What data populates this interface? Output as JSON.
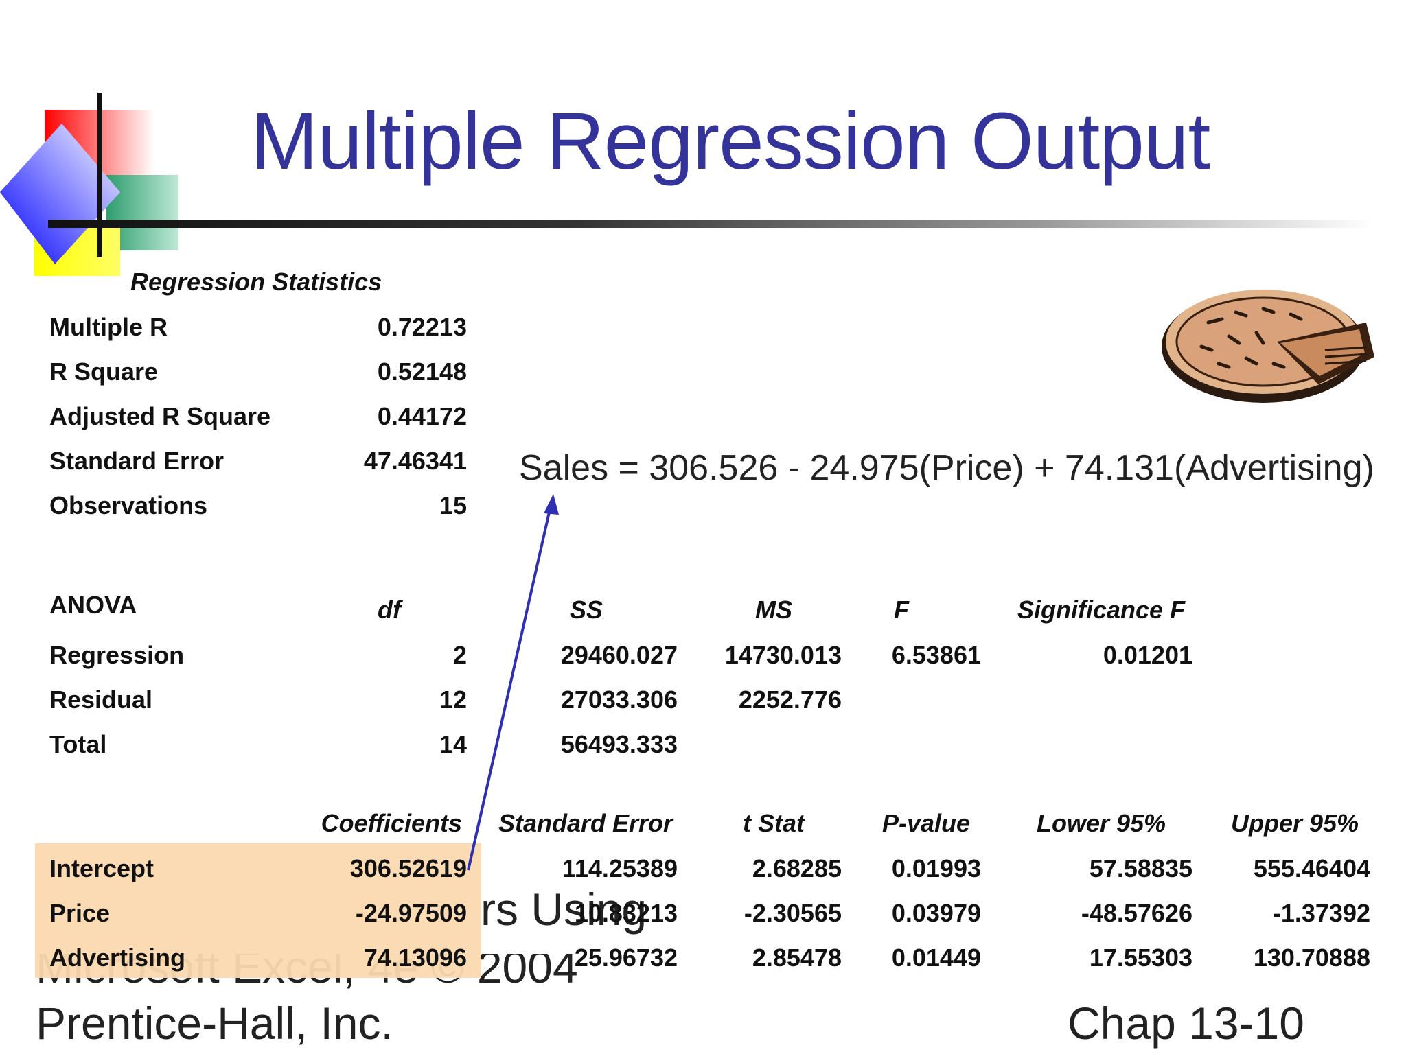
{
  "slide": {
    "title": "Multiple Regression Output",
    "equation": "Sales = 306.526 - 24.975(Price) + 74.131(Advertising)",
    "footer_left_line1": "Microsoft Excel, 4e © 2004",
    "footer_left_line2": "Prentice-Hall, Inc.",
    "footer_left_overlap": "rs Using",
    "footer_right": "Chap 13-10",
    "title_color": "#333399",
    "highlight_color": "#fbd9b0"
  },
  "regression_statistics": {
    "header": "Regression Statistics",
    "rows": [
      {
        "label": "Multiple R",
        "value": "0.72213"
      },
      {
        "label": "R Square",
        "value": "0.52148"
      },
      {
        "label": "Adjusted R Square",
        "value": "0.44172"
      },
      {
        "label": "Standard Error",
        "value": "47.46341"
      },
      {
        "label": "Observations",
        "value": "15"
      }
    ]
  },
  "anova": {
    "header": "ANOVA",
    "columns": [
      "df",
      "SS",
      "MS",
      "F",
      "Significance F"
    ],
    "rows": [
      {
        "label": "Regression",
        "df": "2",
        "ss": "29460.027",
        "ms": "14730.013",
        "f": "6.53861",
        "sig": "0.01201"
      },
      {
        "label": "Residual",
        "df": "12",
        "ss": "27033.306",
        "ms": "2252.776",
        "f": "",
        "sig": ""
      },
      {
        "label": "Total",
        "df": "14",
        "ss": "56493.333",
        "ms": "",
        "f": "",
        "sig": ""
      }
    ]
  },
  "coefficients": {
    "columns": [
      "Coefficients",
      "Standard Error",
      "t Stat",
      "P-value",
      "Lower 95%",
      "Upper 95%"
    ],
    "rows": [
      {
        "label": "Intercept",
        "coef": "306.52619",
        "se": "114.25389",
        "t": "2.68285",
        "p": "0.01993",
        "lo": "57.58835",
        "hi": "555.46404"
      },
      {
        "label": "Price",
        "coef": "-24.97509",
        "se": "10.83213",
        "t": "-2.30565",
        "p": "0.03979",
        "lo": "-48.57626",
        "hi": "-1.37392"
      },
      {
        "label": "Advertising",
        "coef": "74.13096",
        "se": "25.96732",
        "t": "2.85478",
        "p": "0.01449",
        "lo": "17.55303",
        "hi": "130.70888"
      }
    ]
  }
}
